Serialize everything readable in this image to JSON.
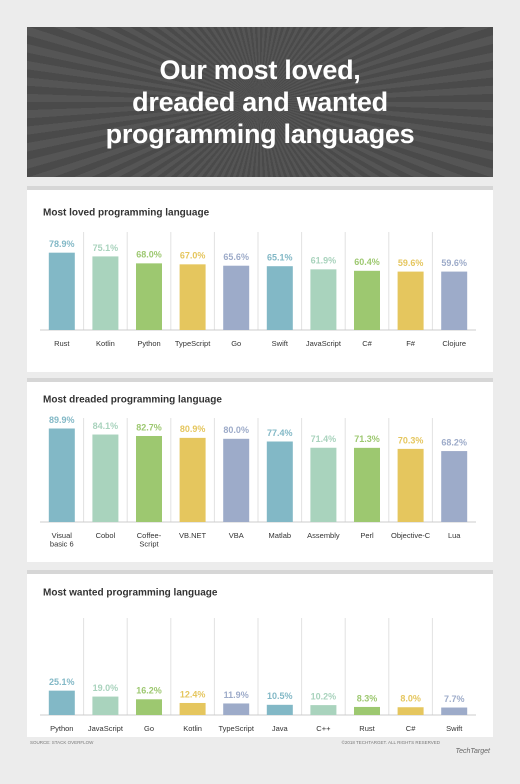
{
  "header": {
    "title": "Our most loved,\ndreaded and wanted\nprogramming languages"
  },
  "chart_data": [
    {
      "type": "bar",
      "title": "Most loved programming language",
      "categories": [
        "Rust",
        "Kotlin",
        "Python",
        "TypeScript",
        "Go",
        "Swift",
        "JavaScript",
        "C#",
        "F#",
        "Clojure"
      ],
      "values": [
        78.9,
        75.1,
        68.0,
        67.0,
        65.6,
        65.1,
        61.9,
        60.4,
        59.6,
        59.6
      ],
      "value_labels": [
        "78.9%",
        "75.1%",
        "68.0%",
        "67.0%",
        "65.6%",
        "65.1%",
        "61.9%",
        "60.4%",
        "59.6%",
        "59.6%"
      ],
      "colors": [
        "#82b8c6",
        "#a9d3bd",
        "#9dc870",
        "#e5c65e",
        "#9dabc9",
        "#82b8c6",
        "#a9d3bd",
        "#9dc870",
        "#e5c65e",
        "#9dabc9"
      ],
      "ylim": [
        0,
        100
      ]
    },
    {
      "type": "bar",
      "title": "Most dreaded programming language",
      "categories": [
        "Visual\nbasic 6",
        "Cobol",
        "Coffee-\nScript",
        "VB.NET",
        "VBA",
        "Matlab",
        "Assembly",
        "Perl",
        "Objective-C",
        "Lua"
      ],
      "values": [
        89.9,
        84.1,
        82.7,
        80.9,
        80.0,
        77.4,
        71.4,
        71.3,
        70.3,
        68.2
      ],
      "value_labels": [
        "89.9%",
        "84.1%",
        "82.7%",
        "80.9%",
        "80.0%",
        "77.4%",
        "71.4%",
        "71.3%",
        "70.3%",
        "68.2%"
      ],
      "colors": [
        "#82b8c6",
        "#a9d3bd",
        "#9dc870",
        "#e5c65e",
        "#9dabc9",
        "#82b8c6",
        "#a9d3bd",
        "#9dc870",
        "#e5c65e",
        "#9dabc9"
      ],
      "ylim": [
        0,
        100
      ]
    },
    {
      "type": "bar",
      "title": "Most wanted programming language",
      "categories": [
        "Python",
        "JavaScript",
        "Go",
        "Kotlin",
        "TypeScript",
        "Java",
        "C++",
        "Rust",
        "C#",
        "Swift"
      ],
      "values": [
        25.1,
        19.0,
        16.2,
        12.4,
        11.9,
        10.5,
        10.2,
        8.3,
        8.0,
        7.7
      ],
      "value_labels": [
        "25.1%",
        "19.0%",
        "16.2%",
        "12.4%",
        "11.9%",
        "10.5%",
        "10.2%",
        "8.3%",
        "8.0%",
        "7.7%"
      ],
      "colors": [
        "#82b8c6",
        "#a9d3bd",
        "#9dc870",
        "#e5c65e",
        "#9dabc9",
        "#82b8c6",
        "#a9d3bd",
        "#9dc870",
        "#e5c65e",
        "#9dabc9"
      ],
      "ylim": [
        0,
        100
      ]
    }
  ],
  "footer": {
    "source": "SOURCE: STACK OVERFLOW",
    "copyright": "©2018 TECHTARGET. ALL RIGHTS RESERVED",
    "logo": "TechTarget"
  }
}
